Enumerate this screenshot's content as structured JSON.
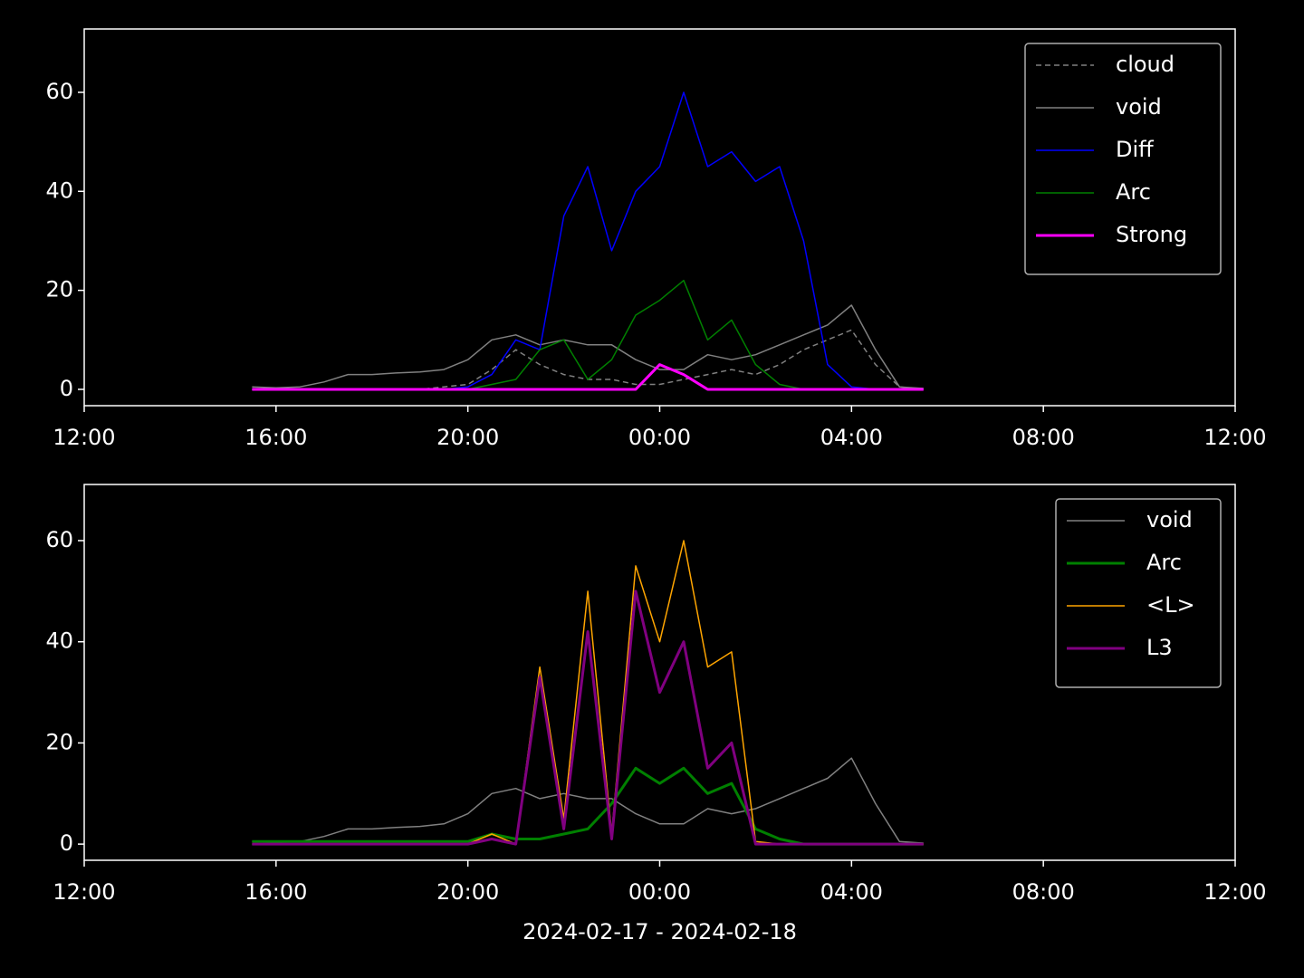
{
  "chart_data": [
    {
      "type": "line",
      "legend": "upper right",
      "x": [
        "2024-02-17T15:30",
        "2024-02-17T16:00",
        "2024-02-17T16:30",
        "2024-02-17T17:00",
        "2024-02-17T17:30",
        "2024-02-17T18:00",
        "2024-02-17T18:30",
        "2024-02-17T19:00",
        "2024-02-17T19:30",
        "2024-02-17T20:00",
        "2024-02-17T20:30",
        "2024-02-17T21:00",
        "2024-02-17T21:30",
        "2024-02-17T22:00",
        "2024-02-17T22:30",
        "2024-02-17T23:00",
        "2024-02-17T23:30",
        "2024-02-18T00:00",
        "2024-02-18T00:30",
        "2024-02-18T01:00",
        "2024-02-18T01:30",
        "2024-02-18T02:00",
        "2024-02-18T02:30",
        "2024-02-18T03:00",
        "2024-02-18T03:30",
        "2024-02-18T04:00",
        "2024-02-18T04:30",
        "2024-02-18T05:00",
        "2024-02-18T05:30"
      ],
      "xlim": [
        "2024-02-17T12:00",
        "2024-02-18T12:00"
      ],
      "xticks": [
        {
          "value": "2024-02-17T12:00",
          "label": "12:00"
        },
        {
          "value": "2024-02-17T16:00",
          "label": "16:00"
        },
        {
          "value": "2024-02-17T20:00",
          "label": "20:00"
        },
        {
          "value": "2024-02-18T00:00",
          "label": "00:00"
        },
        {
          "value": "2024-02-18T04:00",
          "label": "04:00"
        },
        {
          "value": "2024-02-18T08:00",
          "label": "08:00"
        },
        {
          "value": "2024-02-18T12:00",
          "label": "12:00"
        }
      ],
      "ylim": [
        -3.3,
        72.8
      ],
      "yticks": [
        0,
        20,
        40,
        60
      ],
      "series": [
        {
          "name": "cloud",
          "color": "#808080",
          "dashed": true,
          "linewidth": 1.5,
          "values": [
            0,
            0,
            0,
            0,
            0,
            0,
            0,
            0,
            0.5,
            1,
            4,
            8,
            5,
            3,
            2,
            2,
            1,
            1,
            2,
            3,
            4,
            3,
            5,
            8,
            10,
            12,
            5,
            0.5,
            0
          ]
        },
        {
          "name": "void",
          "color": "#808080",
          "linewidth": 1.5,
          "values": [
            0.5,
            0.3,
            0.5,
            1.5,
            3,
            3,
            3.3,
            3.5,
            4,
            6,
            10,
            11,
            9,
            10,
            9,
            9,
            6,
            4,
            4,
            7,
            6,
            7,
            9,
            11,
            13,
            17,
            8,
            0.5,
            0.2
          ]
        },
        {
          "name": "Diff",
          "color": "#0000ff",
          "linewidth": 1.5,
          "values": [
            0,
            0,
            0,
            0,
            0,
            0,
            0,
            0,
            0,
            0.5,
            3,
            10,
            8,
            35,
            45,
            28,
            40,
            45,
            60,
            45,
            48,
            42,
            45,
            30,
            5,
            0.5,
            0,
            0,
            0
          ]
        },
        {
          "name": "Arc",
          "color": "#008000",
          "linewidth": 1.5,
          "values": [
            0,
            0,
            0,
            0,
            0,
            0,
            0,
            0,
            0,
            0,
            1,
            2,
            8,
            10,
            2,
            6,
            15,
            18,
            22,
            10,
            14,
            5,
            1,
            0,
            0,
            0,
            0,
            0,
            0
          ]
        },
        {
          "name": "Strong",
          "color": "#ff00ff",
          "linewidth": 3,
          "values": [
            0,
            0,
            0,
            0,
            0,
            0,
            0,
            0,
            0,
            0,
            0,
            0,
            0,
            0,
            0,
            0,
            0,
            5,
            3,
            0,
            0,
            0,
            0,
            0,
            0,
            0,
            0,
            0,
            0
          ]
        }
      ]
    },
    {
      "type": "line",
      "legend": "upper right",
      "xlabel": "2024-02-17 - 2024-02-18",
      "x": [
        "2024-02-17T15:30",
        "2024-02-17T16:00",
        "2024-02-17T16:30",
        "2024-02-17T17:00",
        "2024-02-17T17:30",
        "2024-02-17T18:00",
        "2024-02-17T18:30",
        "2024-02-17T19:00",
        "2024-02-17T19:30",
        "2024-02-17T20:00",
        "2024-02-17T20:30",
        "2024-02-17T21:00",
        "2024-02-17T21:30",
        "2024-02-17T22:00",
        "2024-02-17T22:30",
        "2024-02-17T23:00",
        "2024-02-17T23:30",
        "2024-02-18T00:00",
        "2024-02-18T00:30",
        "2024-02-18T01:00",
        "2024-02-18T01:30",
        "2024-02-18T02:00",
        "2024-02-18T02:30",
        "2024-02-18T03:00",
        "2024-02-18T03:30",
        "2024-02-18T04:00",
        "2024-02-18T04:30",
        "2024-02-18T05:00",
        "2024-02-18T05:30"
      ],
      "xlim": [
        "2024-02-17T12:00",
        "2024-02-18T12:00"
      ],
      "xticks": [
        {
          "value": "2024-02-17T12:00",
          "label": "12:00"
        },
        {
          "value": "2024-02-17T16:00",
          "label": "16:00"
        },
        {
          "value": "2024-02-17T20:00",
          "label": "20:00"
        },
        {
          "value": "2024-02-18T00:00",
          "label": "00:00"
        },
        {
          "value": "2024-02-18T04:00",
          "label": "04:00"
        },
        {
          "value": "2024-02-18T08:00",
          "label": "08:00"
        },
        {
          "value": "2024-02-18T12:00",
          "label": "12:00"
        }
      ],
      "ylim": [
        -3.2,
        71.1
      ],
      "yticks": [
        0,
        20,
        40,
        60
      ],
      "series": [
        {
          "name": "void",
          "color": "#808080",
          "linewidth": 1.5,
          "values": [
            0.5,
            0.3,
            0.5,
            1.5,
            3,
            3,
            3.3,
            3.5,
            4,
            6,
            10,
            11,
            9,
            10,
            9,
            9,
            6,
            4,
            4,
            7,
            6,
            7,
            9,
            11,
            13,
            17,
            8,
            0.5,
            0.2
          ]
        },
        {
          "name": "Arc",
          "color": "#008000",
          "linewidth": 3,
          "values": [
            0.5,
            0.5,
            0.5,
            0.5,
            0.5,
            0.5,
            0.5,
            0.5,
            0.5,
            0.5,
            2,
            1,
            1,
            2,
            3,
            8,
            15,
            12,
            15,
            10,
            12,
            3,
            1,
            0,
            0,
            0,
            0,
            0,
            0
          ]
        },
        {
          "name": "<L>",
          "color": "#ffa500",
          "linewidth": 1.5,
          "values": [
            0,
            0,
            0,
            0,
            0,
            0,
            0,
            0,
            0,
            0,
            2,
            0,
            35,
            5,
            50,
            2,
            55,
            40,
            60,
            35,
            38,
            0.5,
            0,
            0,
            0,
            0,
            0,
            0,
            0
          ]
        },
        {
          "name": "L3",
          "color": "#800080",
          "linewidth": 3,
          "values": [
            0,
            0,
            0,
            0,
            0,
            0,
            0,
            0,
            0,
            0,
            1,
            0,
            33,
            3,
            42,
            1,
            50,
            30,
            40,
            15,
            20,
            0,
            0,
            0,
            0,
            0,
            0,
            0,
            0
          ]
        }
      ]
    }
  ]
}
